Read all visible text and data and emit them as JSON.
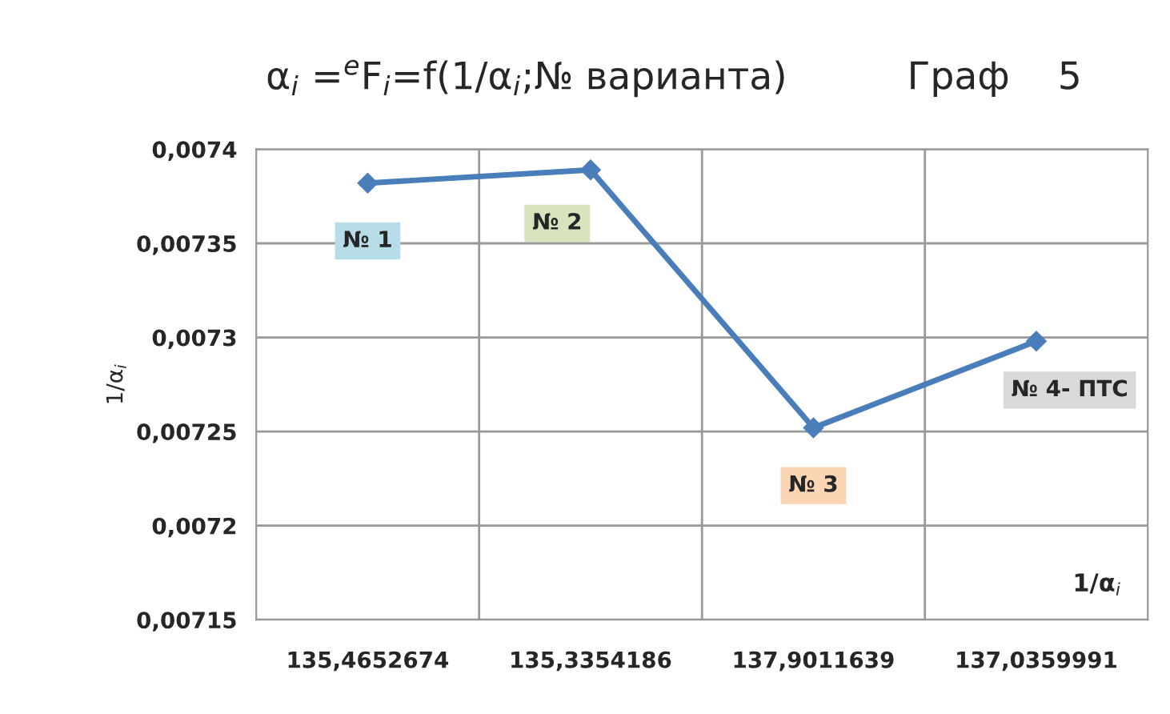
{
  "chart_data": {
    "type": "line",
    "title": "α$_{i}$ =$^{e}$F$_{i}$=f(1/α$_{i}$;№ варианта)",
    "xlabel": "1/α$_{i}$",
    "ylabel": "1/α$_{i}$",
    "categories": [
      "135,4652674",
      "135,3354186",
      "137,9011639",
      "137,0359991"
    ],
    "series": [
      {
        "color": "#4a7ebb",
        "values": [
          0.007382,
          0.007389,
          0.007252,
          0.007298
        ]
      }
    ],
    "ylim": [
      0.00715,
      0.0074
    ],
    "yticks": [
      {
        "value": 0.00715,
        "label": "0,00715"
      },
      {
        "value": 0.0072,
        "label": "0,0072"
      },
      {
        "value": 0.00725,
        "label": "0,00725"
      },
      {
        "value": 0.0073,
        "label": "0,0073"
      },
      {
        "value": 0.00735,
        "label": "0,00735"
      },
      {
        "value": 0.0074,
        "label": "0,0074"
      }
    ],
    "grid": true,
    "marker": "diamond",
    "line_style": "solid",
    "legend": false,
    "annotations": [
      "Граф    5",
      {
        "text": "№ 1",
        "x": "135,4652674",
        "y": 0.007382
      },
      {
        "text": "№ 2",
        "x": "135,3354186",
        "y": 0.007389
      },
      {
        "text": "№ 3",
        "x": "137,9011639",
        "y": 0.007252
      },
      {
        "text": "№ 4- ПТС",
        "x": "137,0359991",
        "y": 0.007298
      }
    ]
  }
}
